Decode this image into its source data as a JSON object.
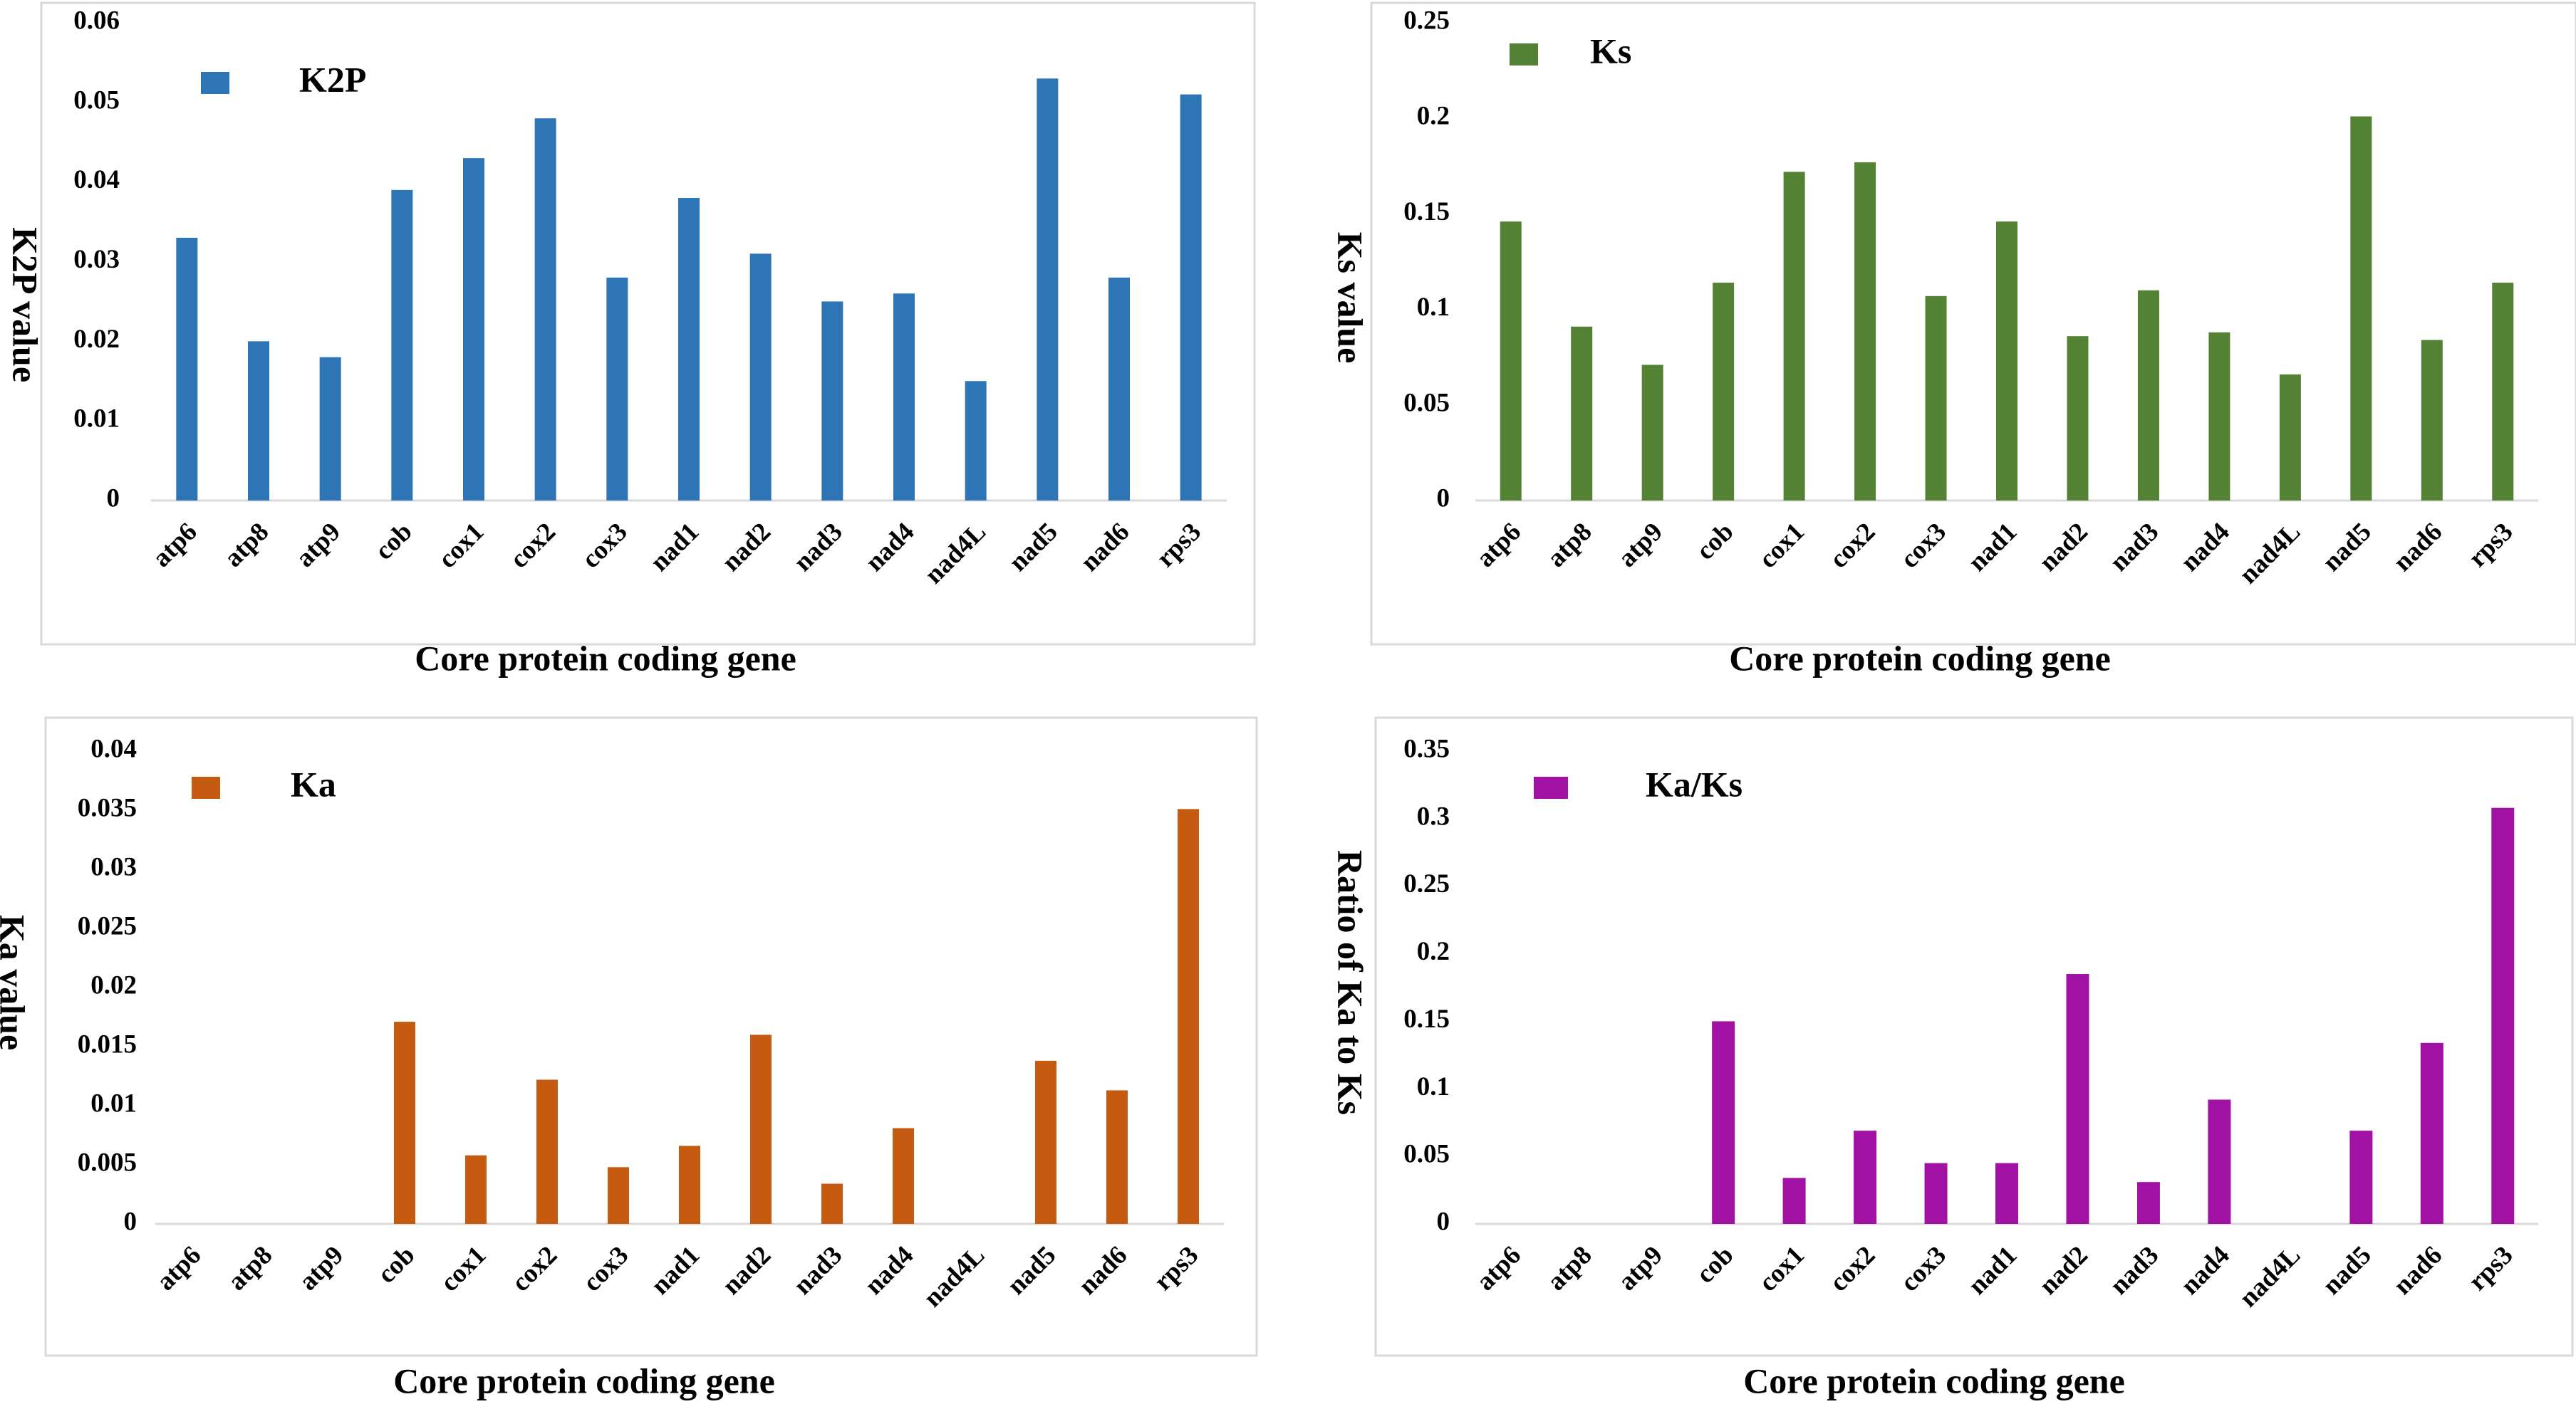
{
  "chart_data": [
    {
      "id": "k2p",
      "type": "bar",
      "legend": "K2P",
      "color": "#2E75B6",
      "ylabel": "K2P value",
      "xlabel": "Core protein coding gene",
      "categories": [
        "atp6",
        "atp8",
        "atp9",
        "cob",
        "cox1",
        "cox2",
        "cox3",
        "nad1",
        "nad2",
        "nad3",
        "nad4",
        "nad4L",
        "nad5",
        "nad6",
        "rps3"
      ],
      "values": [
        0.033,
        0.02,
        0.018,
        0.039,
        0.043,
        0.048,
        0.028,
        0.038,
        0.031,
        0.025,
        0.026,
        0.015,
        0.053,
        0.028,
        0.051
      ],
      "ylim": [
        0,
        0.06
      ],
      "yticks": [
        0,
        0.01,
        0.02,
        0.03,
        0.04,
        0.05,
        0.06
      ],
      "ytick_labels": [
        "0",
        "0.01",
        "0.02",
        "0.03",
        "0.04",
        "0.05",
        "0.06"
      ],
      "grid": false,
      "legend_position": "top-left"
    },
    {
      "id": "ks",
      "type": "bar",
      "legend": "Ks",
      "color": "#548235",
      "ylabel": "Ks value",
      "xlabel": "Core protein coding gene",
      "categories": [
        "atp6",
        "atp8",
        "atp9",
        "cob",
        "cox1",
        "cox2",
        "cox3",
        "nad1",
        "nad2",
        "nad3",
        "nad4",
        "nad4L",
        "nad5",
        "nad6",
        "rps3"
      ],
      "values": [
        0.146,
        0.091,
        0.071,
        0.114,
        0.172,
        0.177,
        0.107,
        0.146,
        0.086,
        0.11,
        0.088,
        0.066,
        0.201,
        0.084,
        0.114
      ],
      "ylim": [
        0,
        0.25
      ],
      "yticks": [
        0,
        0.05,
        0.1,
        0.15,
        0.2,
        0.25
      ],
      "ytick_labels": [
        "0",
        "0.05",
        "0.1",
        "0.15",
        "0.2",
        "0.25"
      ],
      "grid": false,
      "legend_position": "top-left"
    },
    {
      "id": "ka",
      "type": "bar",
      "legend": "Ka",
      "color": "#C55A11",
      "ylabel": "Ka value",
      "xlabel": "Core protein coding gene",
      "categories": [
        "atp6",
        "atp8",
        "atp9",
        "cob",
        "cox1",
        "cox2",
        "cox3",
        "nad1",
        "nad2",
        "nad3",
        "nad4",
        "nad4L",
        "nad5",
        "nad6",
        "rps3"
      ],
      "values": [
        0,
        0,
        0,
        0.0171,
        0.0058,
        0.0122,
        0.0048,
        0.0066,
        0.016,
        0.0034,
        0.0081,
        0,
        0.0138,
        0.0113,
        0.0351
      ],
      "ylim": [
        0,
        0.04
      ],
      "yticks": [
        0,
        0.005,
        0.01,
        0.015,
        0.02,
        0.025,
        0.03,
        0.035,
        0.04
      ],
      "ytick_labels": [
        "0",
        "0.005",
        "0.01",
        "0.015",
        "0.02",
        "0.025",
        "0.03",
        "0.035",
        "0.04"
      ],
      "grid": false,
      "legend_position": "top-left"
    },
    {
      "id": "kaks",
      "type": "bar",
      "legend": "Ka/Ks",
      "color": "#A112A4",
      "ylabel": "Ratio of Ka to Ks",
      "xlabel": "Core protein coding gene",
      "categories": [
        "atp6",
        "atp8",
        "atp9",
        "cob",
        "cox1",
        "cox2",
        "cox3",
        "nad1",
        "nad2",
        "nad3",
        "nad4",
        "nad4L",
        "nad5",
        "nad6",
        "rps3"
      ],
      "values": [
        0,
        0,
        0,
        0.15,
        0.034,
        0.069,
        0.045,
        0.045,
        0.185,
        0.031,
        0.092,
        0,
        0.069,
        0.134,
        0.308
      ],
      "ylim": [
        0,
        0.35
      ],
      "yticks": [
        0,
        0.05,
        0.1,
        0.15,
        0.2,
        0.25,
        0.3,
        0.35
      ],
      "ytick_labels": [
        "0",
        "0.05",
        "0.1",
        "0.15",
        "0.2",
        "0.25",
        "0.3",
        "0.35"
      ],
      "grid": false,
      "legend_position": "top-left"
    }
  ]
}
